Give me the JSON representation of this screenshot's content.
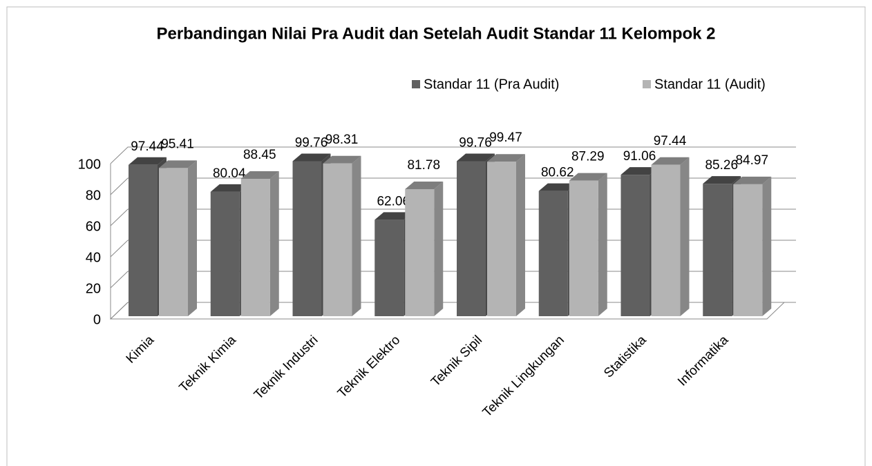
{
  "chart_data": {
    "type": "bar3d",
    "title": "Perbandingan Nilai Pra Audit dan Setelah Audit Standar 11 Kelompok 2",
    "categories": [
      "Kimia",
      "Teknik Kimia",
      "Teknik Industri",
      "Teknik Elektro",
      "Teknik Sipil",
      "Teknik Lingkungan",
      "Statistika",
      "Informatika"
    ],
    "series": [
      {
        "name": "Standar 11 (Pra Audit)",
        "color": "#606060",
        "values": [
          97.44,
          80.04,
          99.76,
          62.06,
          99.76,
          80.62,
          91.06,
          85.26
        ]
      },
      {
        "name": "Standar 11 (Audit)",
        "color": "#b4b4b4",
        "values": [
          95.41,
          88.45,
          98.31,
          81.78,
          99.47,
          87.29,
          97.44,
          84.97
        ]
      }
    ],
    "ylim": [
      0,
      100
    ],
    "yticks": [
      0,
      20,
      40,
      60,
      80,
      100
    ],
    "grid": true,
    "legend": "top"
  }
}
